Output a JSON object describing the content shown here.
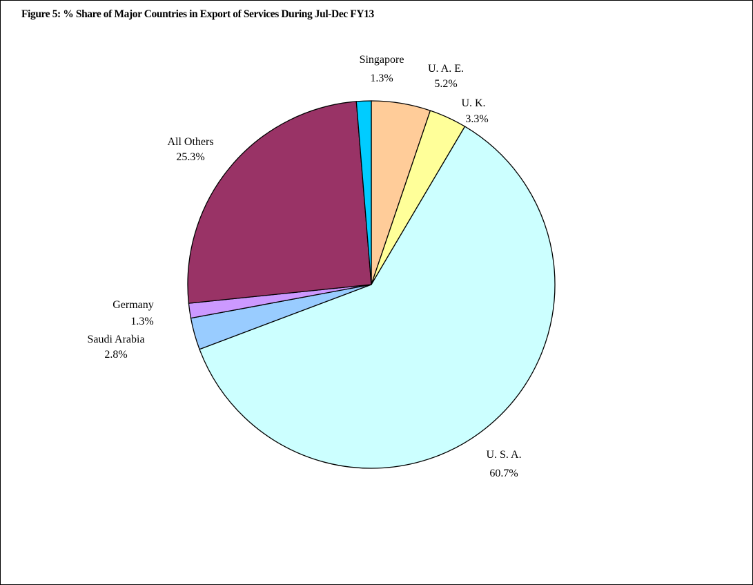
{
  "chart_data": {
    "type": "pie",
    "title": "Figure 5: % Share of Major Countries in Export of Services During Jul-Dec  FY13",
    "slices": [
      {
        "name": "U. A. E.",
        "value": 5.2,
        "label": "5.2%",
        "color": "#FFCC99"
      },
      {
        "name": "U. K.",
        "value": 3.3,
        "label": "3.3%",
        "color": "#FFFF99"
      },
      {
        "name": "U. S. A.",
        "value": 60.7,
        "label": "60.7%",
        "color": "#CCFFFF"
      },
      {
        "name": "Saudi Arabia",
        "value": 2.8,
        "label": "2.8%",
        "color": "#99CCFF"
      },
      {
        "name": "Germany",
        "value": 1.3,
        "label": "1.3%",
        "color": "#CC99FF"
      },
      {
        "name": "All Others",
        "value": 25.3,
        "label": "25.3%",
        "color": "#993366"
      },
      {
        "name": "Singapore",
        "value": 1.3,
        "label": "1.3%",
        "color": "#00CCFF"
      }
    ],
    "start": "12 o'clock",
    "direction": "clockwise"
  }
}
